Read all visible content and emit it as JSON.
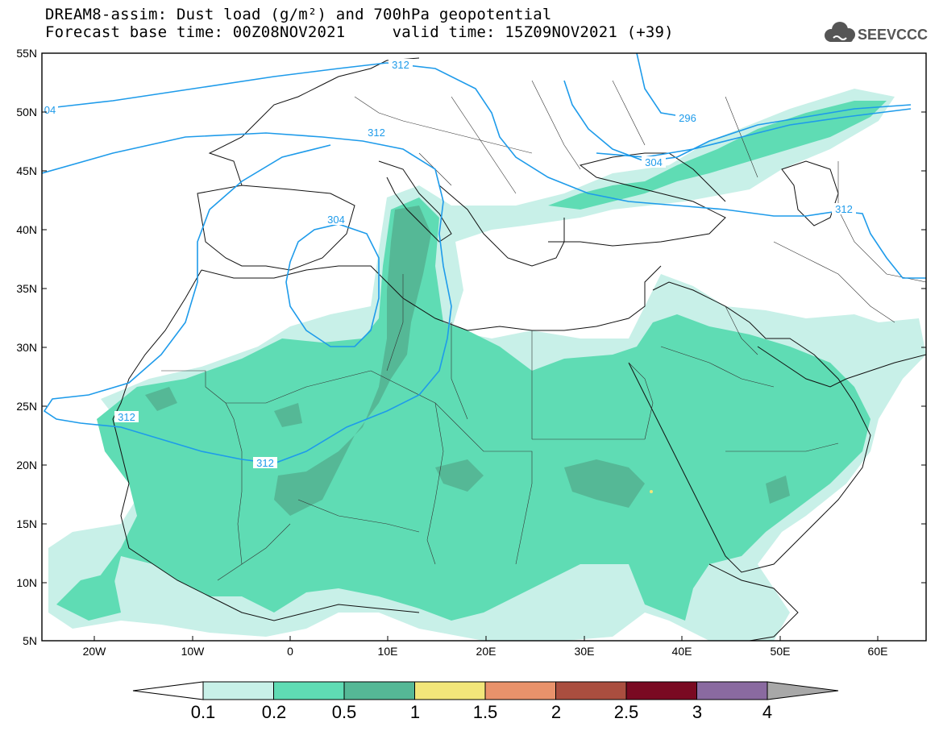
{
  "title": {
    "line1": "DREAM8-assim: Dust load (g/m²) and 700hPa geopotential",
    "line2": "Forecast base time: 00Z08NOV2021     valid time: 15Z09NOV2021 (+39)"
  },
  "logo": {
    "text": "SEEVCCC",
    "icon": "cloud-icon"
  },
  "map": {
    "lat_labels": [
      "55N",
      "50N",
      "45N",
      "40N",
      "35N",
      "30N",
      "25N",
      "20N",
      "15N",
      "10N",
      "5N"
    ],
    "lon_labels": [
      "20W",
      "10W",
      "0",
      "10E",
      "20E",
      "30E",
      "40E",
      "50E",
      "60E"
    ],
    "lat_range": [
      5,
      55
    ],
    "lon_range": [
      -25,
      65
    ],
    "contour_color": "#1e9bea",
    "contour_labels": [
      "312",
      "04",
      "312",
      "304",
      "312",
      "296",
      "304",
      "312",
      "312",
      "312"
    ]
  },
  "colorbar": {
    "ticks": [
      "0.1",
      "0.2",
      "0.5",
      "1",
      "1.5",
      "2",
      "2.5",
      "3",
      "4"
    ],
    "colors": [
      "#c8f0e8",
      "#5fdcb4",
      "#55b896",
      "#f2e67a",
      "#e9926b",
      "#aa4e3f",
      "#7a0a22",
      "#8a6aa0",
      "#a8a8a8"
    ]
  }
}
